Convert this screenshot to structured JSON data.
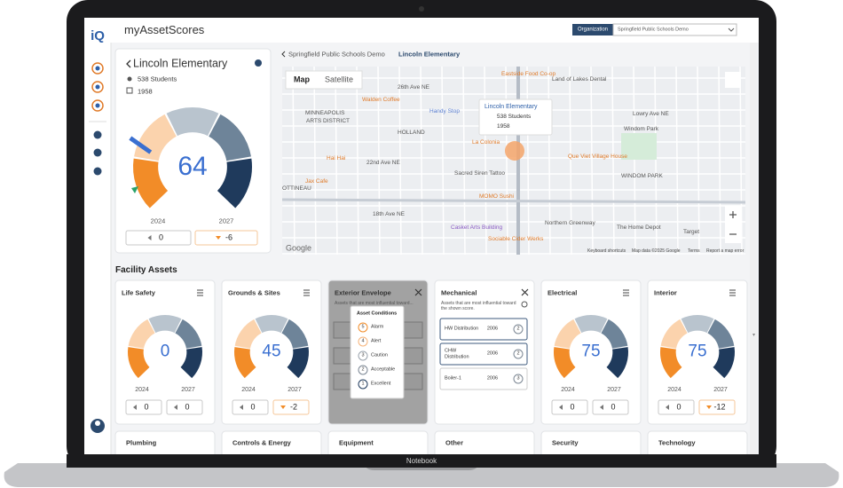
{
  "header": {
    "logo": "iQ",
    "app_title": "myAssetScores",
    "org_label": "Organization",
    "org_value": "Springfield Public Schools Demo"
  },
  "building": {
    "name": "Lincoln Elementary",
    "students": "538 Students",
    "year": 1958,
    "score": 64,
    "year_start": 2024,
    "year_end": 2027,
    "change_start": 0,
    "change_end": -6
  },
  "breadcrumb": {
    "parent": "Springfield Public Schools Demo",
    "current": "Lincoln Elementary"
  },
  "map": {
    "tabs": [
      "Map",
      "Satellite"
    ],
    "popup": {
      "name": "Lincoln Elementary",
      "students": "538 Students",
      "year": 1958
    },
    "labels": [
      "Eastside Food Co-op",
      "26th Ave NE",
      "Land of Lakes Dental",
      "Lowry Ave NE",
      "Walden Coffee",
      "Handy Stop",
      "MINNEAPOLIS",
      "ARTS DISTRICT",
      "HOLLAND",
      "Windom Park",
      "La Colonia",
      "Hai Hai",
      "22nd Ave NE",
      "Que Viet Village House",
      "Jax Cafe",
      "Sacred Siren Tattoo",
      "WINDOM PARK",
      "MOMO Sushi",
      "OTTINEAU",
      "18th Ave NE",
      "Casket Arts Building",
      "Sociable Cider Werks",
      "Northern Greenway",
      "The Home Depot",
      "Target"
    ],
    "brand": "Google",
    "footer": [
      "Keyboard shortcuts",
      "Map data ©2025 Google",
      "Terms",
      "Report a map error"
    ]
  },
  "facility_assets": {
    "title": "Facility Assets",
    "cards": [
      {
        "title": "Life Safety",
        "score": 0,
        "years": [
          2024,
          2027
        ],
        "changes": [
          0,
          0
        ]
      },
      {
        "title": "Grounds & Sites",
        "score": 45,
        "years": [
          2024,
          2027
        ],
        "changes": [
          0,
          -2
        ]
      },
      {
        "title": "Exterior Envelope",
        "note": "Assets that are most influential toward...",
        "legend_title": "Asset Conditions",
        "legend": [
          {
            "level": 5,
            "label": "Alarm"
          },
          {
            "level": 4,
            "label": "Alert"
          },
          {
            "level": 3,
            "label": "Caution"
          },
          {
            "level": 2,
            "label": "Acceptable"
          },
          {
            "level": 1,
            "label": "Excellent"
          }
        ]
      },
      {
        "title": "Mechanical",
        "note": "Assets that are most influential toward the shown score.",
        "assets": [
          {
            "name": "HW Distribution",
            "year": 2006,
            "condition": 2
          },
          {
            "name": "CHW Distribution",
            "year": 2006,
            "condition": 2
          },
          {
            "name": "Boiler-1",
            "year": 2006,
            "condition": 3
          }
        ]
      },
      {
        "title": "Electrical",
        "score": 75,
        "years": [
          2024,
          2027
        ],
        "changes": [
          0,
          0
        ]
      },
      {
        "title": "Interior",
        "score": 75,
        "years": [
          2024,
          2027
        ],
        "changes": [
          0,
          -12
        ]
      }
    ],
    "more_cards": [
      "Plumbing",
      "Controls & Energy",
      "Equipment",
      "Other",
      "Security",
      "Technology"
    ]
  },
  "device_label": "Notebook"
}
